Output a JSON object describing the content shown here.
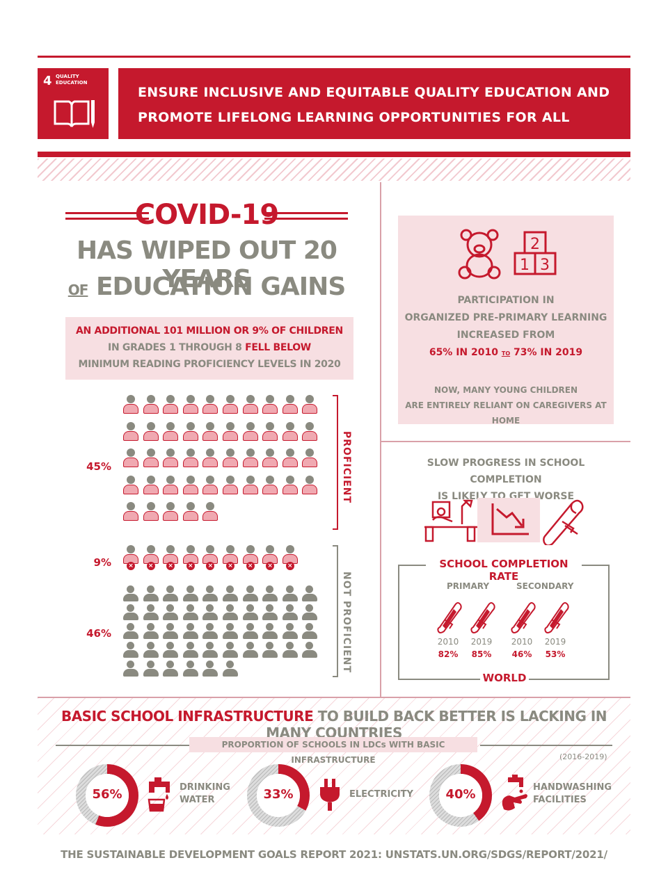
{
  "header": {
    "goal_number": "4",
    "goal_tile_label_1": "QUALITY",
    "goal_tile_label_2": "EDUCATION",
    "banner_line_1": "ENSURE INCLUSIVE AND EQUITABLE QUALITY EDUCATION AND",
    "banner_line_2": "PROMOTE LIFELONG LEARNING OPPORTUNITIES FOR ALL"
  },
  "covid": {
    "title": "COVID-19",
    "line_1": "HAS WIPED OUT 20 YEARS",
    "line_2_of": "OF",
    "line_2_rest": "EDUCATION GAINS"
  },
  "reading": {
    "line_1": "AN ADDITIONAL 101 MILLION OR 9% OF CHILDREN",
    "line_2_a": "IN GRADES 1 THROUGH 8 ",
    "line_2_b": "FELL BELOW",
    "line_3": "MINIMUM READING PROFICIENCY LEVELS IN 2020"
  },
  "proficiency": {
    "proficient_pct": "45%",
    "fell_below_pct": "9%",
    "not_proficient_pct": "46%",
    "proficient_label": "PROFICIENT",
    "not_proficient_label": "NOT PROFICIENT",
    "proficient_count": 45,
    "fell_below_count": 9,
    "not_proficient_count": 46
  },
  "pre_primary": {
    "block_top": "2",
    "block_left": "1",
    "block_right": "3",
    "line_1": "PARTICIPATION IN",
    "line_2": "ORGANIZED PRE-PRIMARY LEARNING",
    "line_3": "INCREASED FROM",
    "line_4_a": "65% IN 2010",
    "line_4_to": "TO",
    "line_4_b": "73% IN 2019",
    "note_1": "NOW, MANY YOUNG CHILDREN",
    "note_2": "ARE ENTIRELY RELIANT ON CAREGIVERS AT HOME"
  },
  "completion": {
    "intro_1": "SLOW PROGRESS IN SCHOOL COMPLETION",
    "intro_2": "IS LIKELY TO GET WORSE",
    "title": "SCHOOL COMPLETION RATE",
    "primary_label": "PRIMARY",
    "secondary_label": "SECONDARY",
    "items": [
      {
        "year": "2010",
        "value": "82%"
      },
      {
        "year": "2019",
        "value": "85%"
      },
      {
        "year": "2010",
        "value": "46%"
      },
      {
        "year": "2019",
        "value": "53%"
      }
    ],
    "footer": "WORLD"
  },
  "infrastructure": {
    "title_red": "BASIC SCHOOL INFRASTRUCTURE",
    "title_gray": " TO BUILD BACK BETTER IS LACKING IN MANY COUNTRIES",
    "subtitle": "PROPORTION OF SCHOOLS IN LDCs WITH BASIC INFRASTRUCTURE",
    "years": "(2016-2019)",
    "items": [
      {
        "pct_label": "56%",
        "value": 56,
        "label_1": "DRINKING",
        "label_2": "WATER"
      },
      {
        "pct_label": "33%",
        "value": 33,
        "label_1": "ELECTRICITY",
        "label_2": ""
      },
      {
        "pct_label": "40%",
        "value": 40,
        "label_1": "HANDWASHING",
        "label_2": "FACILITIES"
      }
    ]
  },
  "footer": "THE SUSTAINABLE DEVELOPMENT GOALS REPORT 2021: UNSTATS.UN.ORG/SDGS/REPORT/2021/",
  "colors": {
    "accent": "#c5192d",
    "gray": "#8a8a80",
    "pink": "#f7dfe2"
  }
}
